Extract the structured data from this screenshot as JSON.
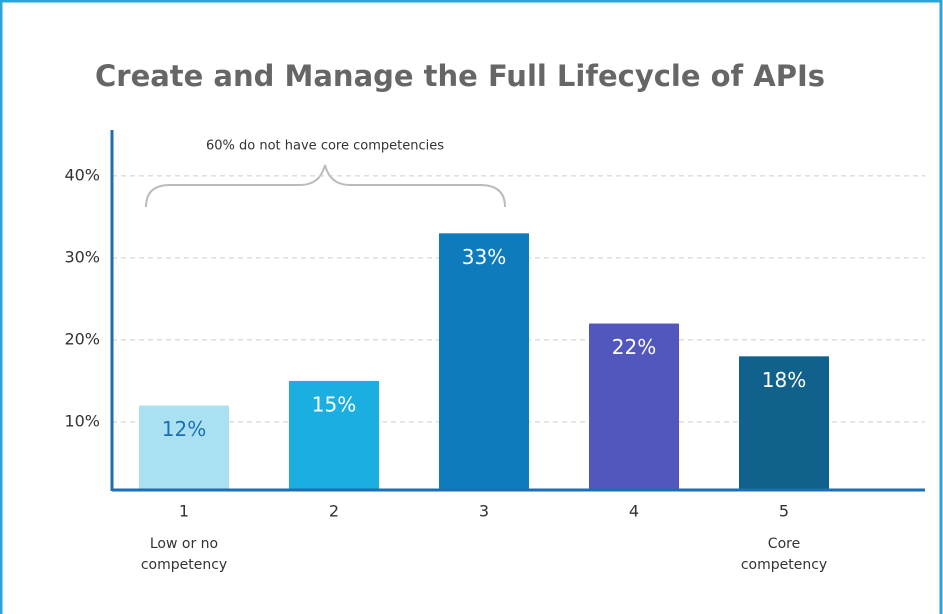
{
  "chart_data": {
    "type": "bar",
    "title": "Create and Manage the Full Lifecycle of APIs",
    "annotation": "60% do not have core competencies",
    "categories": [
      "1",
      "2",
      "3",
      "4",
      "5"
    ],
    "x_notes": [
      [
        "Low or no",
        "competency"
      ],
      null,
      null,
      null,
      [
        "Core",
        "competency"
      ]
    ],
    "values": [
      12,
      15,
      33,
      22,
      18
    ],
    "value_labels": [
      "12%",
      "15%",
      "33%",
      "22%",
      "18%"
    ],
    "colors": [
      "#a9e1f3",
      "#1aafe0",
      "#0e7bbd",
      "#5257be",
      "#10618c"
    ],
    "value_label_colors": [
      "#1a6fb5",
      "#ffffff",
      "#ffffff",
      "#ffffff",
      "#ffffff"
    ],
    "ylim": [
      1.7,
      45.6
    ],
    "yticks": [
      {
        "value": 10,
        "label": "10%"
      },
      {
        "value": 20,
        "label": "20%"
      },
      {
        "value": 30,
        "label": "30%"
      },
      {
        "value": 40,
        "label": "40%"
      }
    ],
    "grid": true
  }
}
